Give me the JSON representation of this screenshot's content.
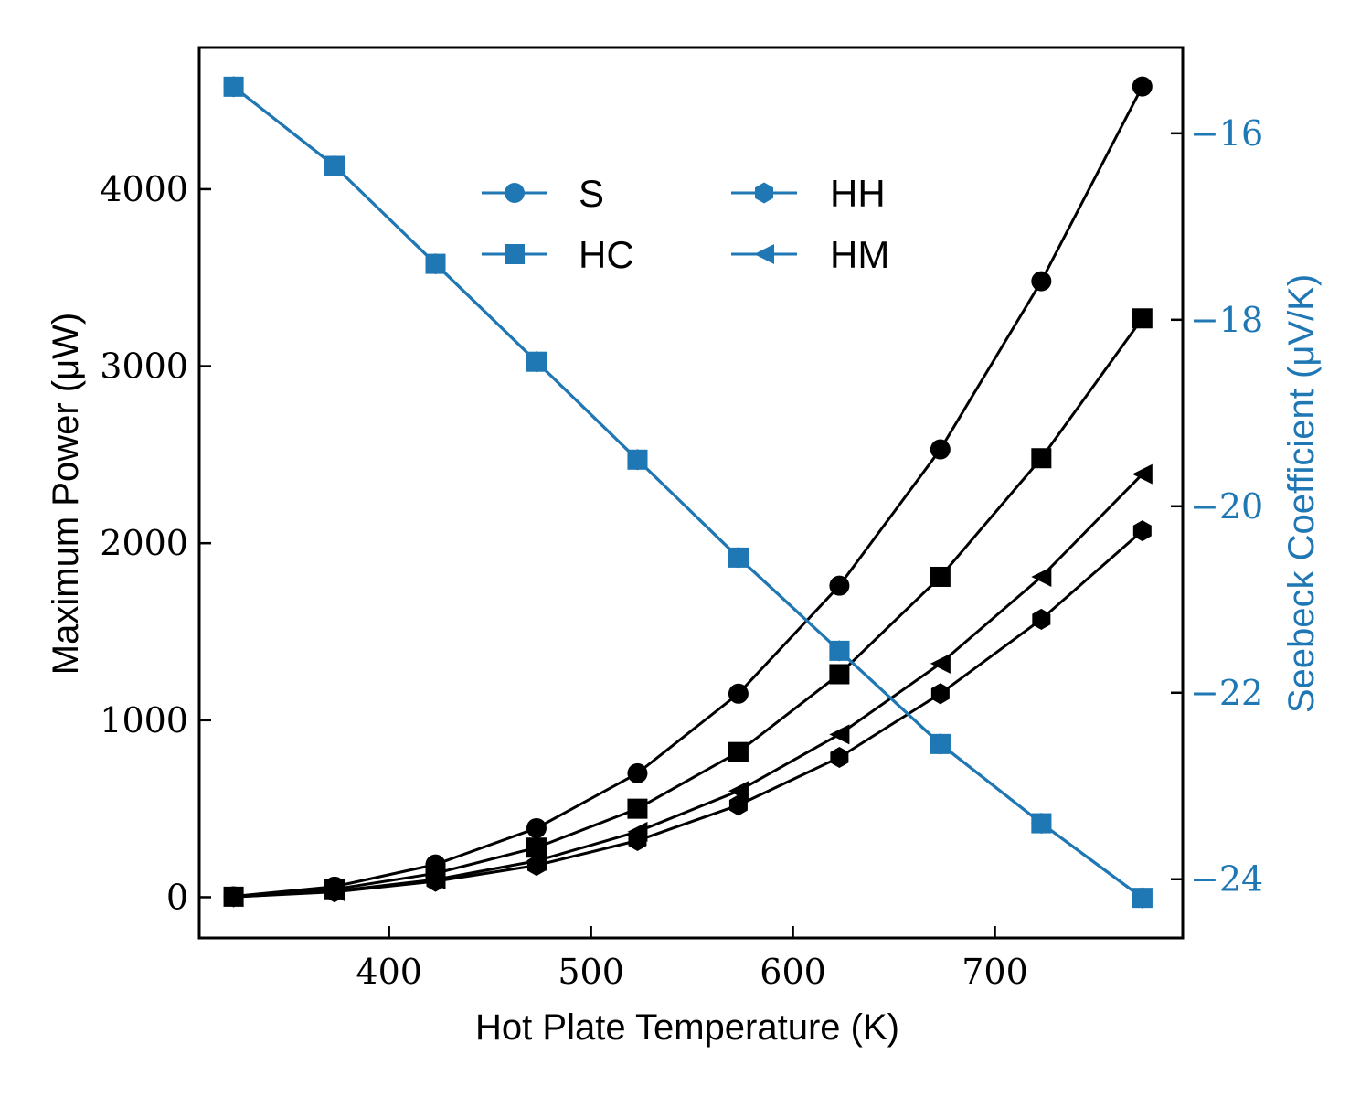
{
  "chart_data": {
    "type": "line",
    "title": "",
    "xlabel": "Hot Plate Temperature (K)",
    "ylabel_left": "Maximum Power (μW)",
    "ylabel_right": "Seebeck Coefficient (μV/K)",
    "xlim": [
      306,
      793
    ],
    "ylim_left": [
      -230,
      4800
    ],
    "ylim_right": [
      -24.63,
      -15.08
    ],
    "x_ticks": [
      400,
      500,
      600,
      700
    ],
    "y_ticks_left": [
      0,
      1000,
      2000,
      3000,
      4000
    ],
    "y_ticks_right": [
      -16,
      -18,
      -20,
      -22,
      -24
    ],
    "x_tick_labels": [
      "400",
      "500",
      "600",
      "700"
    ],
    "y_tick_labels_left": [
      "0",
      "1000",
      "2000",
      "3000",
      "4000"
    ],
    "y_tick_labels_right": [
      "−16",
      "−18",
      "−20",
      "−22",
      "−24"
    ],
    "x": [
      323,
      373,
      423,
      473,
      523,
      573,
      623,
      673,
      723,
      773
    ],
    "power_series": [
      {
        "name": "S",
        "marker": "circle",
        "color": "#000000",
        "values": [
          5,
          60,
          185,
          390,
          700,
          1150,
          1760,
          2530,
          3480,
          4580
        ]
      },
      {
        "name": "HC",
        "marker": "square",
        "color": "#000000",
        "values": [
          3,
          45,
          135,
          280,
          500,
          820,
          1260,
          1810,
          2480,
          3270
        ]
      },
      {
        "name": "HH",
        "marker": "hexagon",
        "color": "#000000",
        "values": [
          2,
          30,
          90,
          180,
          320,
          520,
          790,
          1150,
          1570,
          2070
        ]
      },
      {
        "name": "HM",
        "marker": "triangle-left",
        "color": "#000000",
        "values": [
          2,
          34,
          100,
          205,
          370,
          600,
          920,
          1320,
          1810,
          2390
        ]
      }
    ],
    "seebeck_series": [
      {
        "name": "S",
        "marker": "circle",
        "color": "#1f77b4",
        "values": [
          -15.5,
          -16.35,
          -17.4,
          -18.45,
          -19.5,
          -20.55,
          -21.55,
          -22.55,
          -23.4,
          -24.2
        ]
      },
      {
        "name": "HC",
        "marker": "square",
        "color": "#1f77b4",
        "values": [
          -15.5,
          -16.35,
          -17.4,
          -18.45,
          -19.5,
          -20.55,
          -21.55,
          -22.55,
          -23.4,
          -24.2
        ]
      },
      {
        "name": "HH",
        "marker": "hexagon",
        "color": "#1f77b4",
        "values": [
          -15.5,
          -16.35,
          -17.4,
          -18.45,
          -19.5,
          -20.55,
          -21.55,
          -22.55,
          -23.4,
          -24.2
        ]
      },
      {
        "name": "HM",
        "marker": "triangle-left",
        "color": "#1f77b4",
        "values": [
          -15.5,
          -16.35,
          -17.4,
          -18.45,
          -19.5,
          -20.55,
          -21.55,
          -22.55,
          -23.4,
          -24.2
        ]
      }
    ],
    "legend": {
      "placement": "upper-center",
      "columns": 2,
      "entries": [
        {
          "label": "S",
          "marker": "circle"
        },
        {
          "label": "HC",
          "marker": "square"
        },
        {
          "label": "HH",
          "marker": "hexagon"
        },
        {
          "label": "HM",
          "marker": "triangle-left"
        }
      ],
      "color": "#1f77b4"
    },
    "grid": false,
    "tick_direction": "in",
    "right_axis_color": "#1f77b4"
  }
}
